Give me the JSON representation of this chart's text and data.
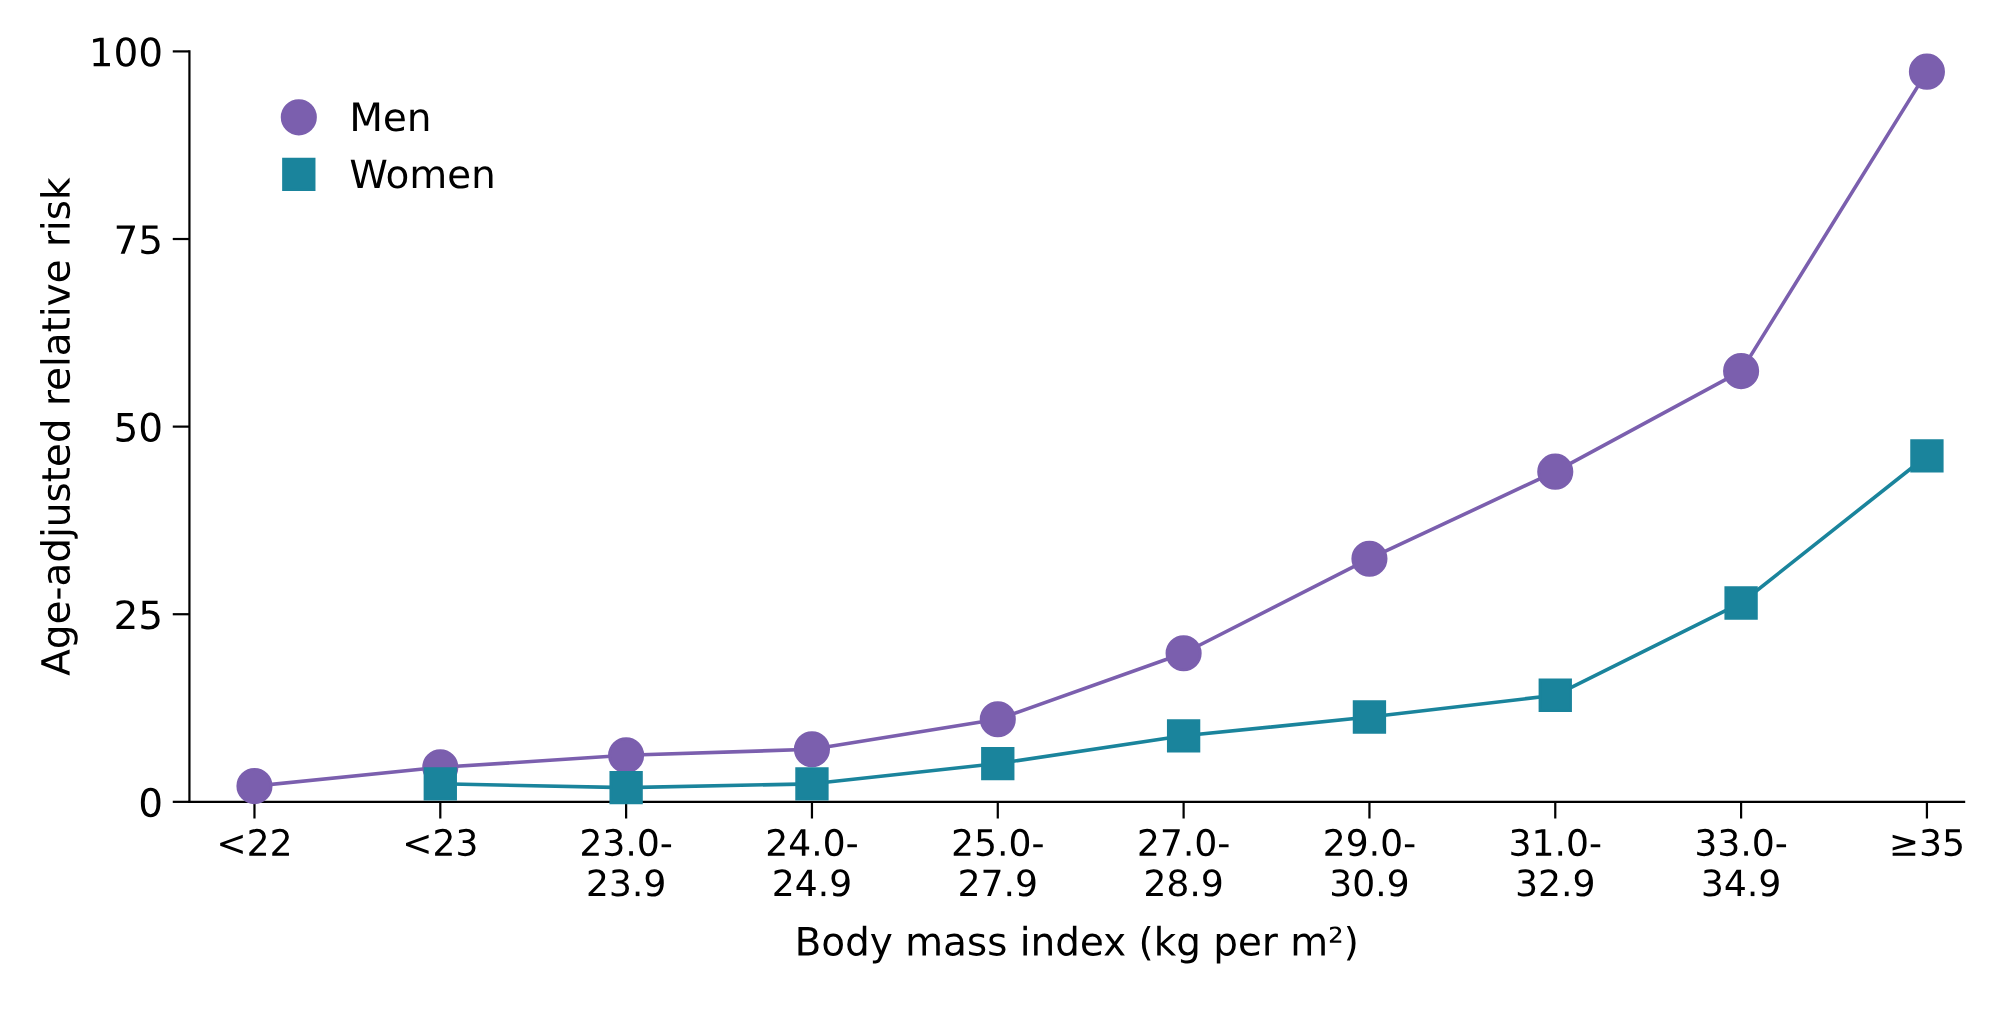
{
  "chart_data": {
    "type": "line",
    "xlabel": "Body mass index (kg per m²)",
    "ylabel": "Age-adjusted relative risk",
    "categories": [
      "<22",
      "<23",
      "23.0-\n23.9",
      "24.0-\n24.9",
      "25.0-\n27.9",
      "27.0-\n28.9",
      "29.0-\n30.9",
      "31.0-\n32.9",
      "33.0-\n34.9",
      "≥35"
    ],
    "series": [
      {
        "name": "Men",
        "color": "#7b5fae",
        "marker": "circle",
        "values": [
          2.1,
          4.6,
          6.2,
          7.0,
          11,
          19.8,
          32.4,
          44,
          57.4,
          97.3
        ]
      },
      {
        "name": "Women",
        "color": "#1a849c",
        "marker": "square",
        "values": [
          null,
          2.4,
          1.9,
          2.4,
          5.1,
          8.8,
          11.3,
          14.2,
          26.5,
          46.1
        ]
      }
    ],
    "ylim": [
      0,
      100
    ],
    "yticks": [
      0,
      25,
      50,
      75,
      100
    ],
    "grid": false,
    "legend": "top left",
    "line_style": "solid"
  }
}
